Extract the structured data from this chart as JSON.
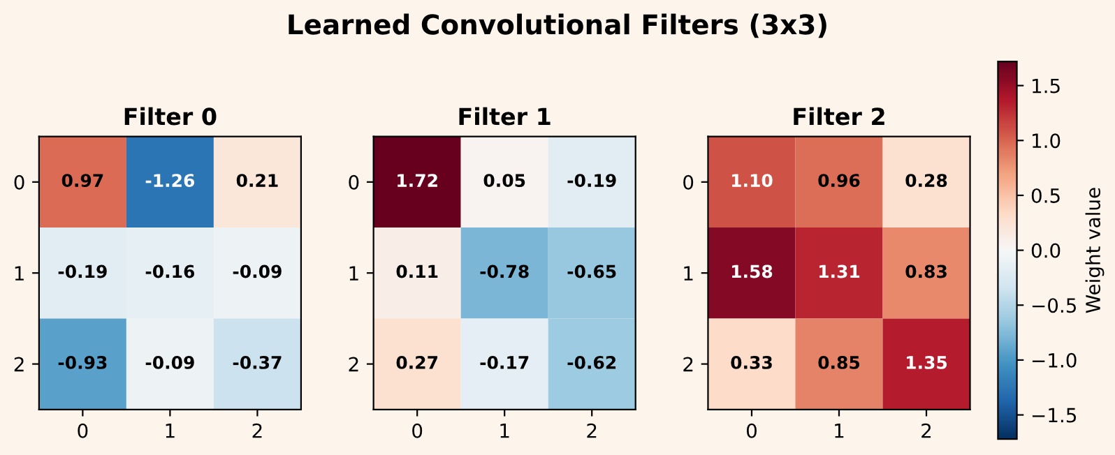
{
  "chart_data": [
    {
      "type": "heatmap",
      "title": "Filter 0",
      "annotations": [
        "Learned Convolutional Filters (3x3)"
      ],
      "categories": [
        "0",
        "1",
        "2"
      ],
      "y_categories": [
        "0",
        "1",
        "2"
      ],
      "cells": [
        [
          0.97,
          -1.26,
          0.21
        ],
        [
          -0.19,
          -0.16,
          -0.09
        ],
        [
          -0.93,
          -0.09,
          -0.37
        ]
      ],
      "data_labels": true
    },
    {
      "type": "heatmap",
      "title": "Filter 1",
      "categories": [
        "0",
        "1",
        "2"
      ],
      "y_categories": [
        "0",
        "1",
        "2"
      ],
      "cells": [
        [
          1.72,
          0.05,
          -0.19
        ],
        [
          0.11,
          -0.78,
          -0.65
        ],
        [
          0.27,
          -0.17,
          -0.62
        ]
      ],
      "data_labels": true
    },
    {
      "type": "heatmap",
      "title": "Filter 2",
      "categories": [
        "0",
        "1",
        "2"
      ],
      "y_categories": [
        "0",
        "1",
        "2"
      ],
      "cells": [
        [
          1.1,
          0.96,
          0.28
        ],
        [
          1.58,
          1.31,
          0.83
        ],
        [
          0.33,
          0.85,
          1.35
        ]
      ],
      "cell_labels": [
        [
          "1.10",
          "0.96",
          "0.28"
        ],
        [
          "1.58",
          "1.31",
          "0.83"
        ],
        [
          "0.33",
          "0.85",
          "1.35"
        ]
      ],
      "data_labels": true,
      "clim": [
        -1.72,
        1.72
      ],
      "clabel": "Weight value",
      "cticks": [
        {
          "value": -1.5,
          "label": "−1.5"
        },
        {
          "value": -1.0,
          "label": "−1.0"
        },
        {
          "value": -0.5,
          "label": "−0.5"
        },
        {
          "value": 0.0,
          "label": "0.0"
        },
        0.5,
        {
          "value": 1.0,
          "label": "1.0"
        },
        1.5
      ]
    }
  ]
}
